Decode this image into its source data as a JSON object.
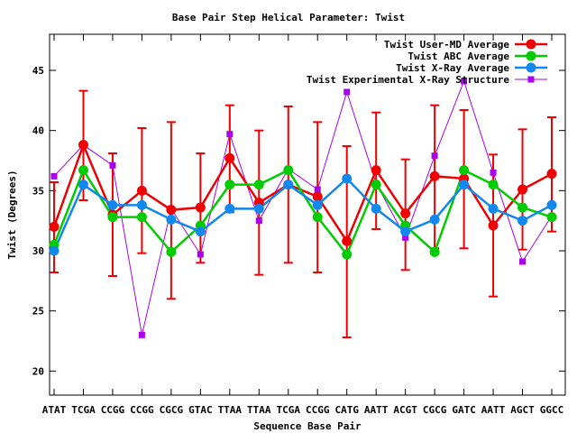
{
  "chart_data": {
    "type": "line",
    "title": "Base Pair Step Helical Parameter: Twist",
    "xlabel": "Sequence Base Pair",
    "ylabel": "Twist (Degrees)",
    "ylim": [
      18,
      48
    ],
    "yticks": [
      20,
      25,
      30,
      35,
      40,
      45
    ],
    "categories": [
      "ATAT",
      "TCGA",
      "CCGG",
      "CCGG",
      "CGCG",
      "GTAC",
      "TTAA",
      "TTAA",
      "TCGA",
      "CCGG",
      "CATG",
      "AATT",
      "ACGT",
      "CGCG",
      "GATC",
      "AATT",
      "AGCT",
      "GGCC"
    ],
    "grid": false,
    "legend_position": "top-right",
    "series": [
      {
        "name": "Twist User-MD Average",
        "color": "#ee0000",
        "marker": "circle",
        "values": [
          32.0,
          38.8,
          33.0,
          35.0,
          33.4,
          33.6,
          37.7,
          34.0,
          35.5,
          34.5,
          30.8,
          36.7,
          33.1,
          36.2,
          36.0,
          32.1,
          35.1,
          36.4
        ],
        "error_low": [
          28.2,
          34.2,
          27.9,
          29.8,
          26.0,
          29.0,
          33.2,
          28.0,
          29.0,
          28.2,
          22.8,
          31.8,
          28.4,
          30.2,
          30.2,
          26.2,
          30.1,
          31.6
        ],
        "error_high": [
          35.7,
          43.3,
          38.1,
          40.2,
          40.7,
          38.1,
          42.1,
          40.0,
          42.0,
          40.7,
          38.7,
          41.5,
          37.6,
          42.1,
          41.7,
          38.0,
          40.1,
          41.1
        ]
      },
      {
        "name": "Twist ABC Average",
        "color": "#00cc00",
        "marker": "circle",
        "values": [
          30.5,
          36.7,
          32.8,
          32.8,
          29.9,
          32.1,
          35.5,
          35.5,
          36.7,
          32.8,
          29.7,
          35.5,
          32.1,
          29.9,
          36.7,
          35.5,
          33.6,
          32.8
        ]
      },
      {
        "name": "Twist X-Ray Average",
        "color": "#1188ee",
        "marker": "circle",
        "values": [
          30.0,
          35.5,
          33.8,
          33.8,
          32.6,
          31.6,
          33.5,
          33.5,
          35.5,
          33.8,
          36.0,
          33.5,
          31.6,
          32.6,
          35.5,
          33.5,
          32.5,
          33.8
        ]
      },
      {
        "name": "Twist Experimental X-Ray Structure",
        "color": "#aa00ee",
        "marker": "square",
        "values": [
          36.2,
          38.8,
          37.1,
          23.0,
          33.5,
          29.7,
          39.7,
          32.5,
          36.8,
          35.1,
          43.2,
          35.6,
          31.1,
          37.9,
          44.1,
          36.5,
          29.1,
          32.9
        ]
      }
    ]
  }
}
